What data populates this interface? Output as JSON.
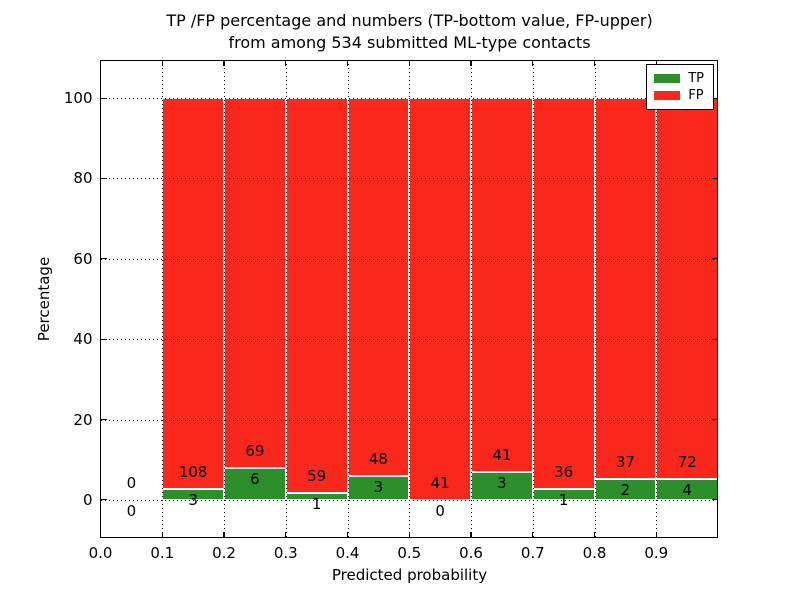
{
  "title": {
    "line1": "TP /FP percentage and numbers (TP-bottom value, FP-upper)",
    "line2": "from among 534 submitted ML-type contacts"
  },
  "chart_data": {
    "type": "bar",
    "stacked": true,
    "title": "TP /FP percentage and numbers (TP-bottom value, FP-upper) from among 534 submitted ML-type contacts",
    "xlabel": "Predicted probability",
    "ylabel": "Percentage",
    "xlim": [
      0.0,
      1.0
    ],
    "ylim": [
      -9.5,
      109.5
    ],
    "x_tick_labels": [
      "0.0",
      "0.1",
      "0.2",
      "0.3",
      "0.4",
      "0.5",
      "0.6",
      "0.7",
      "0.8",
      "0.9"
    ],
    "y_tick_values": [
      0,
      20,
      40,
      60,
      80,
      100
    ],
    "grid": "dotted",
    "grid_above_bars": true,
    "total_contacts": 534,
    "bin_width": 0.1,
    "bins": [
      {
        "start": 0.0,
        "tp": 0,
        "fp": 0,
        "tp_pct": 0
      },
      {
        "start": 0.1,
        "tp": 3,
        "fp": 108,
        "tp_pct": 2.7
      },
      {
        "start": 0.2,
        "tp": 6,
        "fp": 69,
        "tp_pct": 8.0
      },
      {
        "start": 0.3,
        "tp": 1,
        "fp": 59,
        "tp_pct": 1.67
      },
      {
        "start": 0.4,
        "tp": 3,
        "fp": 48,
        "tp_pct": 5.88
      },
      {
        "start": 0.5,
        "tp": 0,
        "fp": 41,
        "tp_pct": 0.0
      },
      {
        "start": 0.6,
        "tp": 3,
        "fp": 41,
        "tp_pct": 6.82
      },
      {
        "start": 0.7,
        "tp": 1,
        "fp": 36,
        "tp_pct": 2.7
      },
      {
        "start": 0.8,
        "tp": 2,
        "fp": 37,
        "tp_pct": 5.13
      },
      {
        "start": 0.9,
        "tp": 4,
        "fp": 72,
        "tp_pct": 5.26
      }
    ],
    "colors": {
      "tp": "#2c8f2c",
      "fp": "#fa281c",
      "bar_edge": "#ffffff"
    },
    "legend": {
      "position": "upper-right",
      "entries": [
        {
          "label": "TP",
          "color": "#2c8f2c"
        },
        {
          "label": "FP",
          "color": "#fa281c"
        }
      ]
    }
  }
}
